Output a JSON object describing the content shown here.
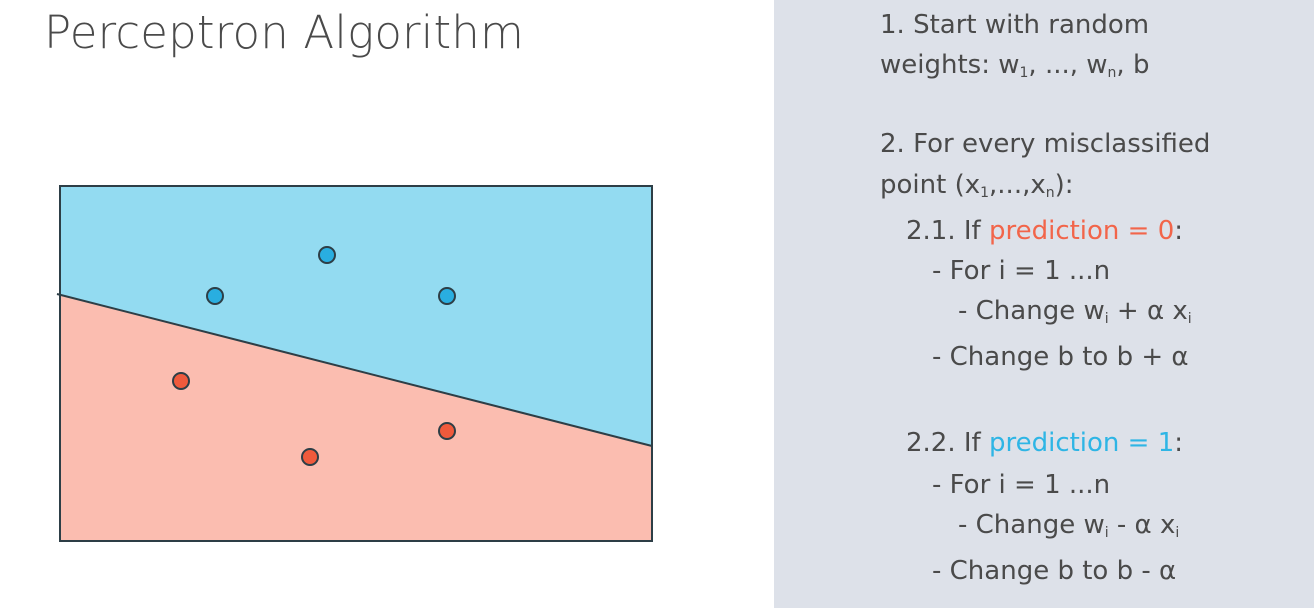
{
  "title": "Perceptron Algorithm",
  "colors": {
    "blue_region": "#93dbf1",
    "red_region": "#fbbdb0",
    "blue_point": "#29aee0",
    "red_point": "#ef5a3c",
    "prediction_zero": "#f2654a",
    "prediction_one": "#2eb5e5",
    "panel": "#dde1e9"
  },
  "steps": {
    "step1_line1": "1. Start with random",
    "step1_line2": "weights: w",
    "sub_1": "1",
    "sub_n": "n",
    "sub_i": "i",
    "sep_ellipsis": ", ..., w",
    "sep_b": ", b",
    "step2_line1": "2. For every misclassified",
    "step2_line2": "point (x",
    "point_mid": ",...,x",
    "point_end": "):",
    "s21_prefix": "2.1. If ",
    "s21_highlight": "prediction = 0",
    "s22_prefix": "2.2. If ",
    "s22_highlight": "prediction = 1",
    "colon": ":",
    "for_loop": "- For i = 1 ...n",
    "change_w": "- Change w",
    "plus_alpha_x": " + α x",
    "minus_alpha_x": " - α x",
    "change_b_plus": "- Change b to b + α",
    "change_b_minus": "- Change b to b - α"
  }
}
